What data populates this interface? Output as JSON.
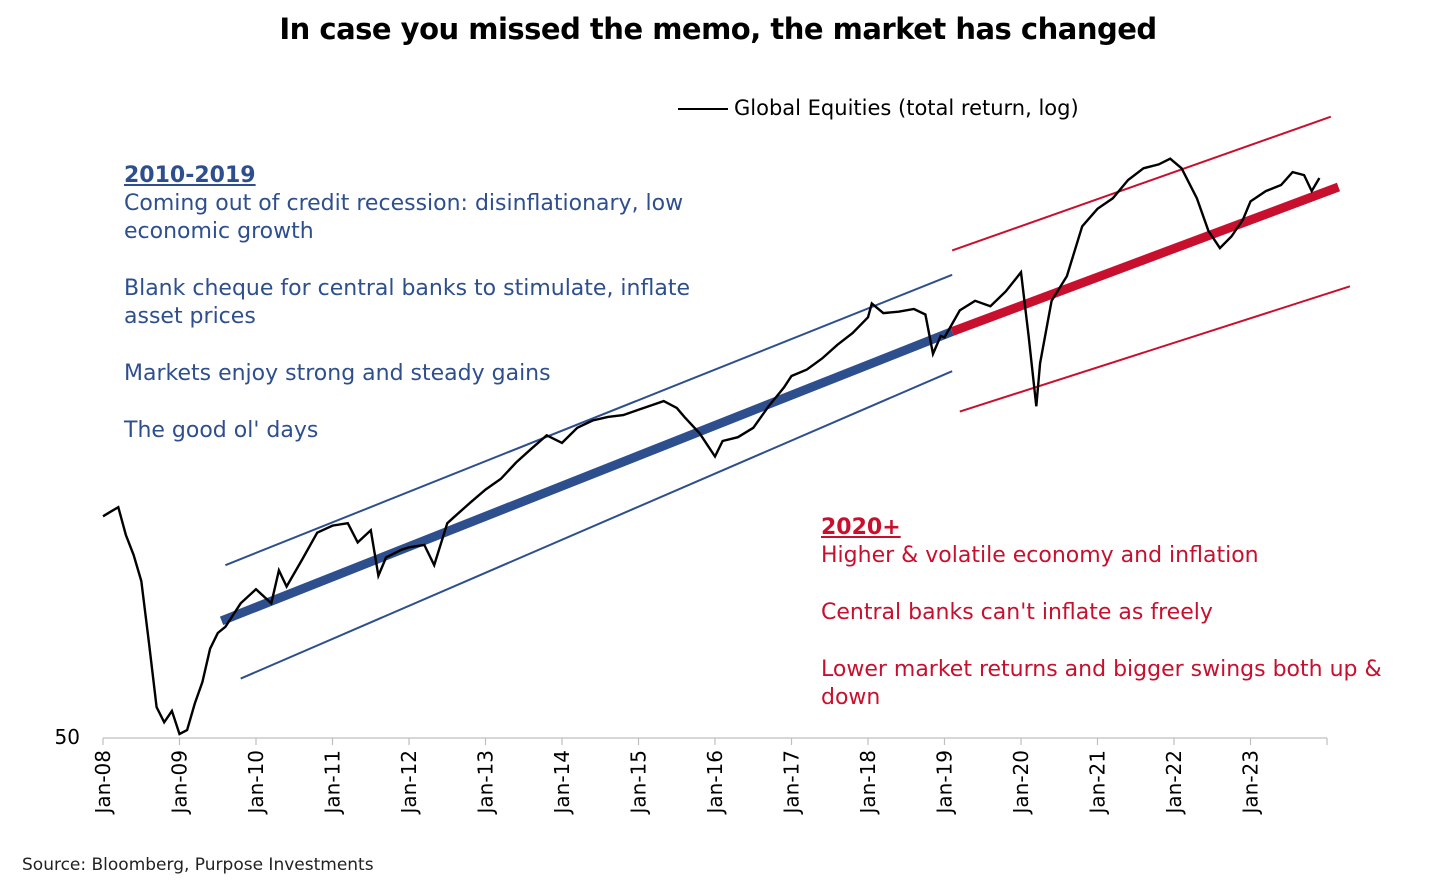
{
  "title": "In case you missed the memo, the market has changed",
  "legend": {
    "label": "Global Equities (total return, log)",
    "color": "#000000"
  },
  "blocks": {
    "b2010": {
      "heading": "2010-2019",
      "color": "#2e4f8e",
      "lines": [
        "Coming out of credit recession: disinflationary, low economic growth",
        "Blank cheque for central banks to stimulate, inflate asset prices",
        "Markets enjoy strong and steady gains",
        "The good ol' days"
      ]
    },
    "b2020": {
      "heading": "2020+",
      "color": "#c8102e",
      "lines": [
        "Higher & volatile economy and inflation",
        "Central banks can't inflate as freely",
        "Lower market returns and bigger swings both up & down"
      ]
    }
  },
  "source": "Source: Bloomberg, Purpose Investments",
  "chart_data": {
    "type": "line",
    "x_tick_labels": [
      "Jan-08",
      "Jan-09",
      "Jan-10",
      "Jan-11",
      "Jan-12",
      "Jan-13",
      "Jan-14",
      "Jan-15",
      "Jan-16",
      "Jan-17",
      "Jan-18",
      "Jan-19",
      "Jan-20",
      "Jan-21",
      "Jan-22",
      "Jan-23"
    ],
    "y_tick_labels": [
      "50"
    ],
    "y_scale": "log",
    "x_range": [
      2008.0,
      2024.0
    ],
    "y_range_relative_to_50": [
      1.0,
      4.8
    ],
    "series": [
      {
        "name": "Global Equities (total return, log)",
        "color": "#000000",
        "x": [
          2008.0,
          2008.1,
          2008.2,
          2008.3,
          2008.4,
          2008.5,
          2008.6,
          2008.7,
          2008.8,
          2008.9,
          2009.0,
          2009.1,
          2009.2,
          2009.3,
          2009.4,
          2009.5,
          2009.6,
          2009.8,
          2010.0,
          2010.2,
          2010.3,
          2010.4,
          2010.6,
          2010.8,
          2011.0,
          2011.2,
          2011.33,
          2011.5,
          2011.6,
          2011.7,
          2011.9,
          2012.0,
          2012.2,
          2012.33,
          2012.5,
          2012.6,
          2012.8,
          2013.0,
          2013.2,
          2013.4,
          2013.6,
          2013.8,
          2014.0,
          2014.2,
          2014.4,
          2014.6,
          2014.8,
          2015.0,
          2015.2,
          2015.33,
          2015.5,
          2015.6,
          2015.8,
          2016.0,
          2016.1,
          2016.3,
          2016.5,
          2016.7,
          2016.9,
          2017.0,
          2017.2,
          2017.4,
          2017.6,
          2017.8,
          2018.0,
          2018.05,
          2018.2,
          2018.4,
          2018.6,
          2018.75,
          2018.85,
          2018.95,
          2019.0,
          2019.2,
          2019.4,
          2019.6,
          2019.8,
          2020.0,
          2020.1,
          2020.2,
          2020.25,
          2020.4,
          2020.6,
          2020.8,
          2021.0,
          2021.2,
          2021.4,
          2021.6,
          2021.8,
          2021.95,
          2022.1,
          2022.3,
          2022.45,
          2022.6,
          2022.75,
          2022.9,
          2023.0,
          2023.2,
          2023.4,
          2023.55,
          2023.7,
          2023.8,
          2023.9
        ],
        "y_rel": [
          1.74,
          1.76,
          1.78,
          1.66,
          1.58,
          1.48,
          1.27,
          1.08,
          1.04,
          1.07,
          1.01,
          1.02,
          1.09,
          1.15,
          1.25,
          1.3,
          1.32,
          1.4,
          1.45,
          1.4,
          1.52,
          1.46,
          1.56,
          1.67,
          1.7,
          1.71,
          1.63,
          1.68,
          1.5,
          1.57,
          1.6,
          1.61,
          1.62,
          1.54,
          1.71,
          1.74,
          1.8,
          1.86,
          1.91,
          1.99,
          2.06,
          2.13,
          2.09,
          2.17,
          2.21,
          2.23,
          2.24,
          2.27,
          2.3,
          2.32,
          2.28,
          2.23,
          2.14,
          2.02,
          2.1,
          2.12,
          2.17,
          2.29,
          2.4,
          2.47,
          2.51,
          2.58,
          2.67,
          2.75,
          2.86,
          2.96,
          2.89,
          2.9,
          2.92,
          2.88,
          2.61,
          2.73,
          2.72,
          2.91,
          2.98,
          2.94,
          3.05,
          3.2,
          2.73,
          2.29,
          2.55,
          2.98,
          3.17,
          3.59,
          3.75,
          3.85,
          4.03,
          4.15,
          4.19,
          4.25,
          4.15,
          3.85,
          3.55,
          3.4,
          3.5,
          3.65,
          3.82,
          3.92,
          3.98,
          4.11,
          4.08,
          3.92,
          4.05
        ]
      }
    ],
    "annotations": [
      {
        "name": "2010-2019 trend",
        "color": "#2e4f8e",
        "x": [
          2009.55,
          2019.1
        ],
        "y_rel": [
          1.34,
          2.76
        ]
      },
      {
        "name": "2010-2019 upper channel",
        "color": "#2e4f8e",
        "x": [
          2009.6,
          2019.1
        ],
        "y_rel": [
          1.54,
          3.18
        ]
      },
      {
        "name": "2010-2019 lower channel",
        "color": "#2e4f8e",
        "x": [
          2009.8,
          2019.1
        ],
        "y_rel": [
          1.16,
          2.5
        ]
      },
      {
        "name": "2020+ trend",
        "color": "#c8102e",
        "x": [
          2019.1,
          2024.15
        ],
        "y_rel": [
          2.76,
          3.96
        ]
      },
      {
        "name": "2020+ upper channel",
        "color": "#c8102e",
        "x": [
          2019.1,
          2024.05
        ],
        "y_rel": [
          3.38,
          4.72
        ]
      },
      {
        "name": "2020+ lower channel",
        "color": "#c8102e",
        "x": [
          2019.2,
          2024.3
        ],
        "y_rel": [
          2.26,
          3.09
        ]
      }
    ]
  }
}
